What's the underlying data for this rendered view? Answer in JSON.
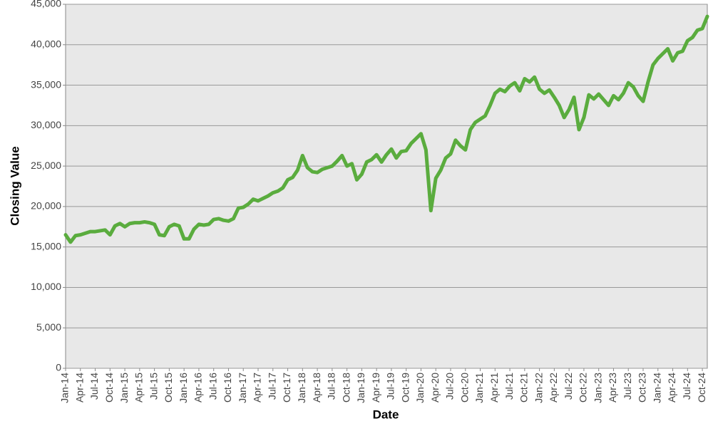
{
  "chart_data": {
    "type": "line",
    "x_label": "Date",
    "y_label": "Closing Value",
    "categories": [
      "Jan-14",
      null,
      null,
      "Apr-14",
      null,
      null,
      "Jul-14",
      null,
      null,
      "Oct-14",
      null,
      null,
      "Jan-15",
      null,
      null,
      "Apr-15",
      null,
      null,
      "Jul-15",
      null,
      null,
      "Oct-15",
      null,
      null,
      "Jan-16",
      null,
      null,
      "Apr-16",
      null,
      null,
      "Jul-16",
      null,
      null,
      "Oct-16",
      null,
      null,
      "Jan-17",
      null,
      null,
      "Apr-17",
      null,
      null,
      "Jul-17",
      null,
      null,
      "Oct-17",
      null,
      null,
      "Jan-18",
      null,
      null,
      "Apr-18",
      null,
      null,
      "Jul-18",
      null,
      null,
      "Oct-18",
      null,
      null,
      "Jan-19",
      null,
      null,
      "Apr-19",
      null,
      null,
      "Jul-19",
      null,
      null,
      "Oct-19",
      null,
      null,
      "Jan-20",
      null,
      null,
      "Apr-20",
      null,
      null,
      "Jul-20",
      null,
      null,
      "Oct-20",
      null,
      null,
      "Jan-21",
      null,
      null,
      "Apr-21",
      null,
      null,
      "Jul-21",
      null,
      null,
      "Oct-21",
      null,
      null,
      "Jan-22",
      null,
      null,
      "Apr-22",
      null,
      null,
      "Jul-22",
      null,
      null,
      "Oct-22",
      null,
      null,
      "Jan-23",
      null,
      null,
      "Apr-23",
      null,
      null,
      "Jul-23",
      null,
      null,
      "Oct-23",
      null,
      null,
      "Jan-24",
      null,
      null,
      "Apr-24",
      null,
      null,
      "Jul-24",
      null,
      null,
      "Oct-24",
      null
    ],
    "values": [
      16500,
      15600,
      16400,
      16500,
      16700,
      16900,
      16900,
      17000,
      17100,
      16500,
      17600,
      17900,
      17500,
      17900,
      18000,
      18000,
      18100,
      18000,
      17800,
      16500,
      16400,
      17500,
      17800,
      17600,
      16000,
      16000,
      17200,
      17800,
      17700,
      17800,
      18400,
      18500,
      18300,
      18200,
      18500,
      19800,
      19900,
      20300,
      20900,
      20700,
      21000,
      21300,
      21700,
      21900,
      22300,
      23300,
      23600,
      24500,
      26300,
      24800,
      24300,
      24200,
      24600,
      24800,
      25000,
      25600,
      26300,
      25000,
      25300,
      23300,
      24000,
      25500,
      25800,
      26400,
      25500,
      26400,
      27100,
      26000,
      26800,
      26900,
      27800,
      28400,
      29000,
      27000,
      19500,
      23500,
      24500,
      26000,
      26500,
      28200,
      27500,
      27000,
      29500,
      30400,
      30800,
      31200,
      32500,
      34000,
      34500,
      34200,
      34900,
      35300,
      34300,
      35800,
      35400,
      36000,
      34500,
      34000,
      34400,
      33500,
      32500,
      31000,
      32000,
      33500,
      29500,
      31000,
      33800,
      33300,
      33900,
      33200,
      32500,
      33700,
      33200,
      34000,
      35300,
      34800,
      33700,
      33000,
      35400,
      37500,
      38300,
      38900,
      39500,
      38000,
      39000,
      39200,
      40500,
      40900,
      41800,
      42000,
      43500
    ],
    "color": "#5aac3e",
    "ylim": [
      0,
      45000
    ],
    "yticks": [
      0,
      {
        "value": 5000,
        "label": "5,000"
      },
      {
        "value": 10000,
        "label": "10,000"
      },
      {
        "value": 15000,
        "label": "15,000"
      },
      {
        "value": 20000,
        "label": "20,000"
      },
      {
        "value": 25000,
        "label": "25,000"
      },
      {
        "value": 30000,
        "label": "30,000"
      },
      {
        "value": 35000,
        "label": "35,000"
      },
      {
        "value": 40000,
        "label": "40,000"
      },
      {
        "value": 45000,
        "label": "45,000"
      }
    ],
    "grid": true
  }
}
